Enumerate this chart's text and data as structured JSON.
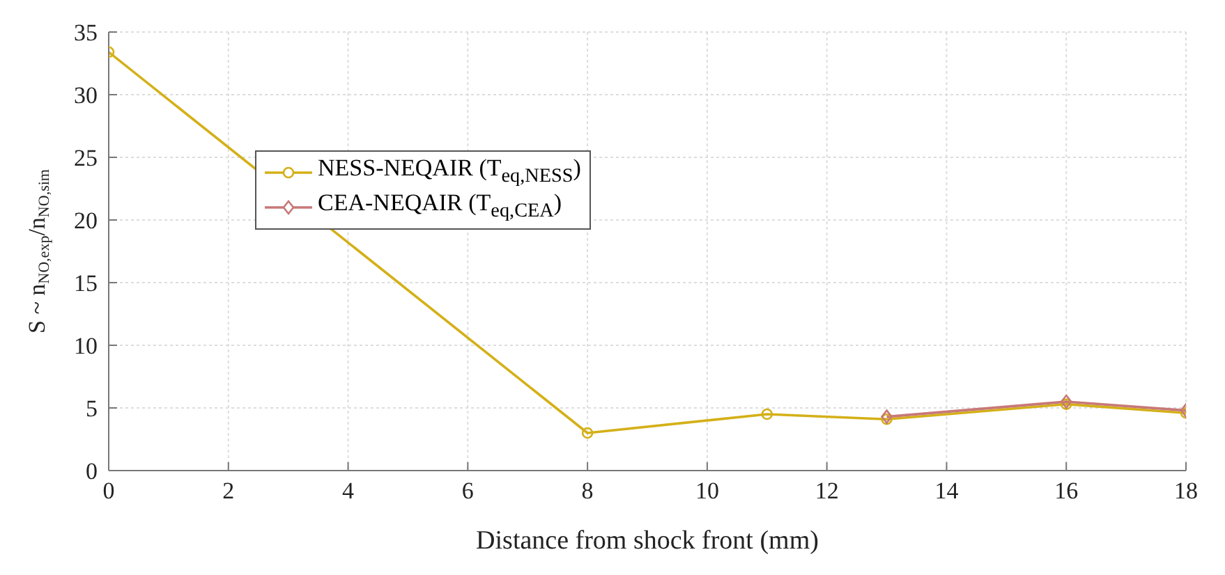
{
  "chart_data": {
    "type": "line",
    "xlabel": "Distance from shock front (mm)",
    "ylabel": "S ~ n$_{NO,exp}$/n$_{NO,sim}$",
    "xlim": [
      0,
      18
    ],
    "xticks": [
      0,
      2,
      4,
      6,
      8,
      10,
      12,
      14,
      16,
      18
    ],
    "ylim": [
      0,
      35
    ],
    "yticks": [
      0,
      5,
      10,
      15,
      20,
      25,
      30,
      35
    ],
    "grid": true,
    "legend": "top left",
    "line_style": "solid",
    "series": [
      {
        "name": "NESS-NEQAIR (T$_{eq,NESS}$)",
        "color": "#d4b018",
        "marker": "circle",
        "x": [
          0,
          8,
          11,
          13,
          16,
          18
        ],
        "values": [
          33.4,
          3.0,
          4.5,
          4.1,
          5.3,
          4.6
        ]
      },
      {
        "name": "CEA-NEQAIR (T$_{eq,CEA}$)",
        "color": "#c87878",
        "marker": "diamond",
        "x": [
          13,
          16,
          18
        ],
        "values": [
          4.3,
          5.5,
          4.8
        ]
      }
    ]
  }
}
